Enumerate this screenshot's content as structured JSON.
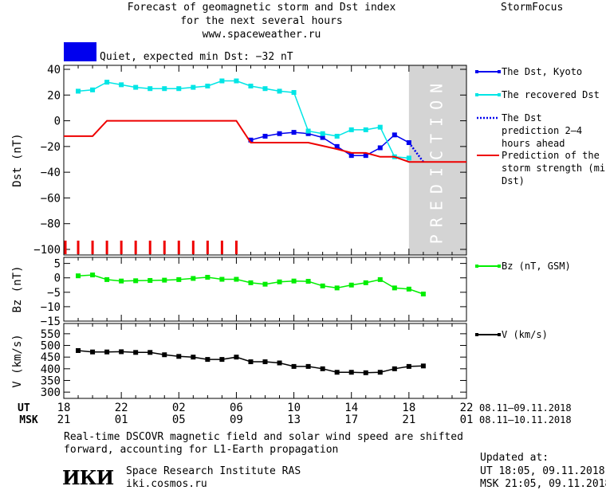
{
  "header": {
    "title_line1": "Forecast of geomagnetic storm and Dst index",
    "title_line2": "for the next several hours",
    "title_line3": "www.spaceweather.ru",
    "brand": "StormFocus",
    "status_text": "Quiet, expected min Dst: −32 nT",
    "status_color": "#0000ee"
  },
  "footer": {
    "note_line1": "Real-time DSCOVR magnetic field and solar wind speed are shifted",
    "note_line2": "forward, accounting for L1-Earth propagation",
    "org_name": "Space Research Institute RAS",
    "org_url": "iki.cosmos.ru",
    "logo_text": "ИКИ",
    "updated_label": "Updated at:",
    "updated_ut": "UT   18:05, 09.11.2018",
    "updated_msk": "MSK 21:05, 09.11.2018"
  },
  "chart_data": [
    {
      "type": "line",
      "panel": "dst",
      "ylabel": "Dst (nT)",
      "ylim": [
        -100,
        40
      ],
      "yticks": [
        40,
        20,
        0,
        -20,
        -40,
        -60,
        -80,
        -100
      ],
      "ytick_labels": [
        "40",
        "20",
        "0",
        "−20",
        "−40",
        "−60",
        "−80",
        "−100"
      ],
      "shaded_region": {
        "x_start": 18.0,
        "x_end": 22.0,
        "label": "PREDICTION",
        "color": "#d4d4d4"
      },
      "series": [
        {
          "name": "The Dst, Kyoto",
          "color": "#0000ee",
          "marker": "square",
          "x": [
            7.0,
            8.0,
            9.0,
            10.0,
            11.0,
            12.0,
            13.0,
            14.0,
            15.0,
            16.0,
            17.0,
            18.0
          ],
          "y": [
            -15,
            -12,
            -10,
            -9,
            -10,
            -13,
            -20,
            -27,
            -27,
            -21,
            -11,
            -17
          ]
        },
        {
          "name": "The recovered Dst",
          "color": "#00e5e5",
          "marker": "square",
          "x": [
            -5.0,
            -4.0,
            -3.0,
            -2.0,
            -1.0,
            0.0,
            1.0,
            2.0,
            3.0,
            4.0,
            5.0,
            6.0,
            7.0,
            8.0,
            9.0,
            10.0,
            11.0,
            12.0,
            13.0,
            14.0,
            15.0,
            16.0,
            17.0,
            18.0
          ],
          "y": [
            23,
            24,
            30,
            28,
            26,
            25,
            25,
            25,
            26,
            27,
            31,
            31,
            27,
            25,
            23,
            22,
            -8,
            -10,
            -12,
            -7,
            -7,
            -5,
            -28,
            -29
          ]
        },
        {
          "name": "The Dst prediction 2–4 hours ahead",
          "color": "#0000ee",
          "dashed": true,
          "x": [
            18.0,
            19.0
          ],
          "y": [
            -17,
            -32
          ]
        },
        {
          "name": "Prediction of the storm strength (min Dst)",
          "color": "#ee0000",
          "x": [
            -6.0,
            -4.0,
            -3.0,
            6.0,
            7.0,
            11.0,
            13.0,
            14.0,
            15.0,
            16.0,
            17.0,
            18.0,
            22.0
          ],
          "y": [
            -12,
            -12,
            0,
            0,
            -17,
            -17,
            -22,
            -25,
            -25,
            -28,
            -28,
            -32,
            -32
          ]
        }
      ],
      "tick_marks": {
        "color": "#ee0000",
        "x": [
          -6.0,
          -5.0,
          -4.0,
          -3.0,
          -2.0,
          -1.0,
          0.0,
          1.0,
          2.0,
          3.0,
          4.0,
          5.0,
          6.0
        ]
      }
    },
    {
      "type": "line",
      "panel": "bz",
      "ylabel": "Bz (nT)",
      "ylim": [
        -15,
        6
      ],
      "yticks": [
        5,
        0,
        -5,
        -10,
        -15
      ],
      "ytick_labels": [
        "5",
        "0",
        "−5",
        "−10",
        "−15"
      ],
      "series": [
        {
          "name": "Bz (nT, GSM)",
          "color": "#00ee00",
          "marker": "square",
          "x": [
            -5.0,
            -4.0,
            -3.0,
            -2.0,
            -1.0,
            0.0,
            1.0,
            2.0,
            3.0,
            4.0,
            5.0,
            6.0,
            7.0,
            8.0,
            9.0,
            10.0,
            11.0,
            12.0,
            13.0,
            14.0,
            15.0,
            16.0,
            17.0,
            18.0,
            19.0
          ],
          "y": [
            0.7,
            1.0,
            -0.6,
            -1.1,
            -1.0,
            -0.9,
            -0.8,
            -0.6,
            -0.2,
            0.2,
            -0.5,
            -0.5,
            -1.7,
            -2.2,
            -1.4,
            -1.1,
            -1.2,
            -2.8,
            -3.5,
            -2.5,
            -1.7,
            -0.6,
            -3.5,
            -3.9,
            -5.6
          ]
        }
      ]
    },
    {
      "type": "line",
      "panel": "v",
      "ylabel": "V (km/s)",
      "ylim": [
        280,
        570
      ],
      "yticks": [
        550,
        500,
        450,
        400,
        350,
        300
      ],
      "ytick_labels": [
        "550",
        "500",
        "450",
        "400",
        "350",
        "300"
      ],
      "series": [
        {
          "name": "V (km/s)",
          "color": "#000000",
          "marker": "square",
          "x": [
            -5.0,
            -4.0,
            -3.0,
            -2.0,
            -1.0,
            0.0,
            1.0,
            2.0,
            3.0,
            4.0,
            5.0,
            6.0,
            7.0,
            8.0,
            9.0,
            10.0,
            11.0,
            12.0,
            13.0,
            14.0,
            15.0,
            16.0,
            17.0,
            18.0,
            19.0
          ],
          "y": [
            478,
            472,
            472,
            473,
            470,
            470,
            460,
            453,
            450,
            440,
            440,
            450,
            430,
            430,
            425,
            410,
            410,
            400,
            385,
            385,
            383,
            385,
            400,
            410,
            412
          ]
        }
      ]
    }
  ],
  "x_axis": {
    "xlim": [
      -6.0,
      22.0
    ],
    "major_ticks": [
      -6,
      -2,
      2,
      6,
      10,
      14,
      18,
      22
    ],
    "ut_label": "UT",
    "msk_label": "MSK",
    "ut_ticks": [
      "18",
      "22",
      "02",
      "06",
      "10",
      "14",
      "18",
      "22"
    ],
    "msk_ticks": [
      "21",
      "01",
      "05",
      "09",
      "13",
      "17",
      "21",
      "01"
    ],
    "ut_date_range": "08.11–09.11.2018",
    "msk_date_range": "08.11–10.11.2018"
  }
}
